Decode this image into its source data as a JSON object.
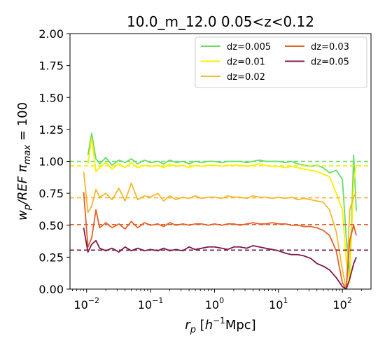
{
  "chart_data": {
    "type": "line",
    "title": "10.0_m_12.0 0.05<z<0.12",
    "xlabel": "r_p [h^{-1}Mpc]",
    "ylabel": "w_p/REF π_max = 100",
    "xscale": "log",
    "xlim": [
      0.0055,
      280
    ],
    "ylim": [
      0,
      2.0
    ],
    "yticks": [
      "0.00",
      "0.25",
      "0.50",
      "0.75",
      "1.00",
      "1.25",
      "1.50",
      "1.75",
      "2.00"
    ],
    "xticks": [
      {
        "base": "10",
        "exp": "−2",
        "value": 0.01
      },
      {
        "base": "10",
        "exp": "−1",
        "value": 0.1
      },
      {
        "base": "10",
        "exp": "0",
        "value": 1
      },
      {
        "base": "10",
        "exp": "1",
        "value": 10
      },
      {
        "base": "10",
        "exp": "2",
        "value": 100
      }
    ],
    "legend_placement": "top-right",
    "grid": false,
    "series": [
      {
        "name": "dz=0.005",
        "color": "#66dd66",
        "reference": 1.0,
        "x": [
          0.0105,
          0.012,
          0.014,
          0.016,
          0.02,
          0.025,
          0.032,
          0.04,
          0.05,
          0.063,
          0.08,
          0.1,
          0.13,
          0.16,
          0.2,
          0.25,
          0.32,
          0.4,
          0.5,
          0.63,
          0.8,
          1.0,
          1.3,
          1.6,
          2.0,
          2.5,
          3.2,
          4.0,
          5.0,
          6.3,
          8.0,
          10,
          13,
          16,
          20,
          25,
          32,
          40,
          50,
          63,
          80,
          100,
          115,
          130,
          150,
          165
        ],
        "y": [
          1.05,
          1.22,
          1.02,
          0.98,
          1.03,
          0.97,
          1.01,
          0.99,
          1.02,
          0.98,
          1.01,
          0.99,
          1.0,
          0.98,
          1.01,
          0.99,
          1.0,
          0.98,
          1.0,
          0.99,
          1.0,
          1.0,
          0.99,
          1.0,
          1.0,
          1.0,
          0.99,
          1.0,
          1.01,
          1.0,
          1.0,
          1.0,
          0.99,
          1.0,
          0.98,
          0.97,
          0.96,
          0.97,
          0.95,
          0.91,
          0.93,
          0.86,
          0.4,
          0.1,
          1.05,
          0.61
        ]
      },
      {
        "name": "dz=0.01",
        "color": "#ffee00",
        "reference": 0.965,
        "x": [
          0.0105,
          0.012,
          0.014,
          0.016,
          0.02,
          0.025,
          0.032,
          0.04,
          0.05,
          0.063,
          0.08,
          0.1,
          0.13,
          0.16,
          0.2,
          0.25,
          0.32,
          0.4,
          0.5,
          0.63,
          0.8,
          1.0,
          1.3,
          1.6,
          2.0,
          2.5,
          3.2,
          4.0,
          5.0,
          6.3,
          8.0,
          10,
          13,
          16,
          20,
          25,
          32,
          40,
          50,
          63,
          80,
          100,
          115,
          130,
          150,
          165
        ],
        "y": [
          0.98,
          1.18,
          0.92,
          0.95,
          0.99,
          0.94,
          0.98,
          0.95,
          0.99,
          0.95,
          0.97,
          0.96,
          0.97,
          0.95,
          0.98,
          0.96,
          0.97,
          0.95,
          0.97,
          0.96,
          0.97,
          0.97,
          0.96,
          0.97,
          0.97,
          0.97,
          0.96,
          0.97,
          0.98,
          0.97,
          0.96,
          0.96,
          0.95,
          0.96,
          0.95,
          0.94,
          0.93,
          0.92,
          0.9,
          0.88,
          0.75,
          0.62,
          0.22,
          0.05,
          0.85,
          0.97
        ]
      },
      {
        "name": "dz=0.02",
        "color": "#f5b82e",
        "reference": 0.715,
        "x": [
          0.009,
          0.0105,
          0.012,
          0.014,
          0.016,
          0.02,
          0.025,
          0.032,
          0.04,
          0.05,
          0.063,
          0.08,
          0.1,
          0.13,
          0.16,
          0.2,
          0.25,
          0.32,
          0.4,
          0.5,
          0.63,
          0.8,
          1.0,
          1.3,
          1.6,
          2.0,
          2.5,
          3.2,
          4.0,
          5.0,
          6.3,
          8.0,
          10,
          13,
          16,
          20,
          25,
          32,
          40,
          50,
          63,
          80,
          100,
          115,
          130,
          150,
          165
        ],
        "y": [
          0.92,
          0.6,
          0.65,
          0.78,
          0.72,
          0.75,
          0.7,
          0.79,
          0.69,
          0.83,
          0.7,
          0.73,
          0.72,
          0.75,
          0.69,
          0.73,
          0.7,
          0.72,
          0.71,
          0.73,
          0.71,
          0.72,
          0.72,
          0.71,
          0.73,
          0.72,
          0.72,
          0.71,
          0.73,
          0.72,
          0.72,
          0.71,
          0.72,
          0.71,
          0.72,
          0.7,
          0.71,
          0.7,
          0.69,
          0.68,
          0.62,
          0.45,
          0.15,
          0.0,
          0.62,
          0.72,
          0.76
        ]
      },
      {
        "name": "dz=0.03",
        "color": "#e2622a",
        "reference": 0.505,
        "x": [
          0.009,
          0.0105,
          0.012,
          0.014,
          0.016,
          0.02,
          0.025,
          0.032,
          0.04,
          0.05,
          0.063,
          0.08,
          0.1,
          0.13,
          0.16,
          0.2,
          0.25,
          0.32,
          0.4,
          0.5,
          0.63,
          0.8,
          1.0,
          1.3,
          1.6,
          2.0,
          2.5,
          3.2,
          4.0,
          5.0,
          6.3,
          8.0,
          10,
          13,
          16,
          20,
          25,
          32,
          40,
          50,
          63,
          80,
          100,
          115,
          130,
          150,
          165
        ],
        "y": [
          0.76,
          0.33,
          0.4,
          0.62,
          0.48,
          0.52,
          0.48,
          0.51,
          0.47,
          0.53,
          0.48,
          0.52,
          0.5,
          0.51,
          0.49,
          0.52,
          0.5,
          0.51,
          0.5,
          0.51,
          0.51,
          0.5,
          0.51,
          0.5,
          0.51,
          0.51,
          0.5,
          0.51,
          0.52,
          0.51,
          0.51,
          0.52,
          0.51,
          0.51,
          0.5,
          0.5,
          0.49,
          0.49,
          0.48,
          0.46,
          0.42,
          0.3,
          0.05,
          0.0,
          0.38,
          0.5,
          0.42
        ]
      },
      {
        "name": "dz=0.05",
        "color": "#7a1a4a",
        "reference": 0.305,
        "x": [
          0.009,
          0.0105,
          0.012,
          0.014,
          0.016,
          0.02,
          0.025,
          0.032,
          0.04,
          0.05,
          0.063,
          0.08,
          0.1,
          0.13,
          0.16,
          0.2,
          0.25,
          0.32,
          0.4,
          0.5,
          0.63,
          0.8,
          1.0,
          1.3,
          1.6,
          2.0,
          2.5,
          3.2,
          4.0,
          5.0,
          6.3,
          8.0,
          10,
          13,
          16,
          20,
          25,
          32,
          40,
          50,
          63,
          80,
          100,
          115,
          130,
          150,
          165
        ],
        "y": [
          0.48,
          0.29,
          0.35,
          0.38,
          0.32,
          0.3,
          0.32,
          0.29,
          0.33,
          0.3,
          0.32,
          0.3,
          0.31,
          0.3,
          0.32,
          0.3,
          0.31,
          0.3,
          0.33,
          0.31,
          0.32,
          0.33,
          0.33,
          0.32,
          0.31,
          0.33,
          0.33,
          0.32,
          0.34,
          0.33,
          0.32,
          0.31,
          0.3,
          0.28,
          0.27,
          0.27,
          0.26,
          0.24,
          0.2,
          0.18,
          0.15,
          0.09,
          0.02,
          0.0,
          0.08,
          0.2,
          0.25
        ]
      }
    ]
  }
}
